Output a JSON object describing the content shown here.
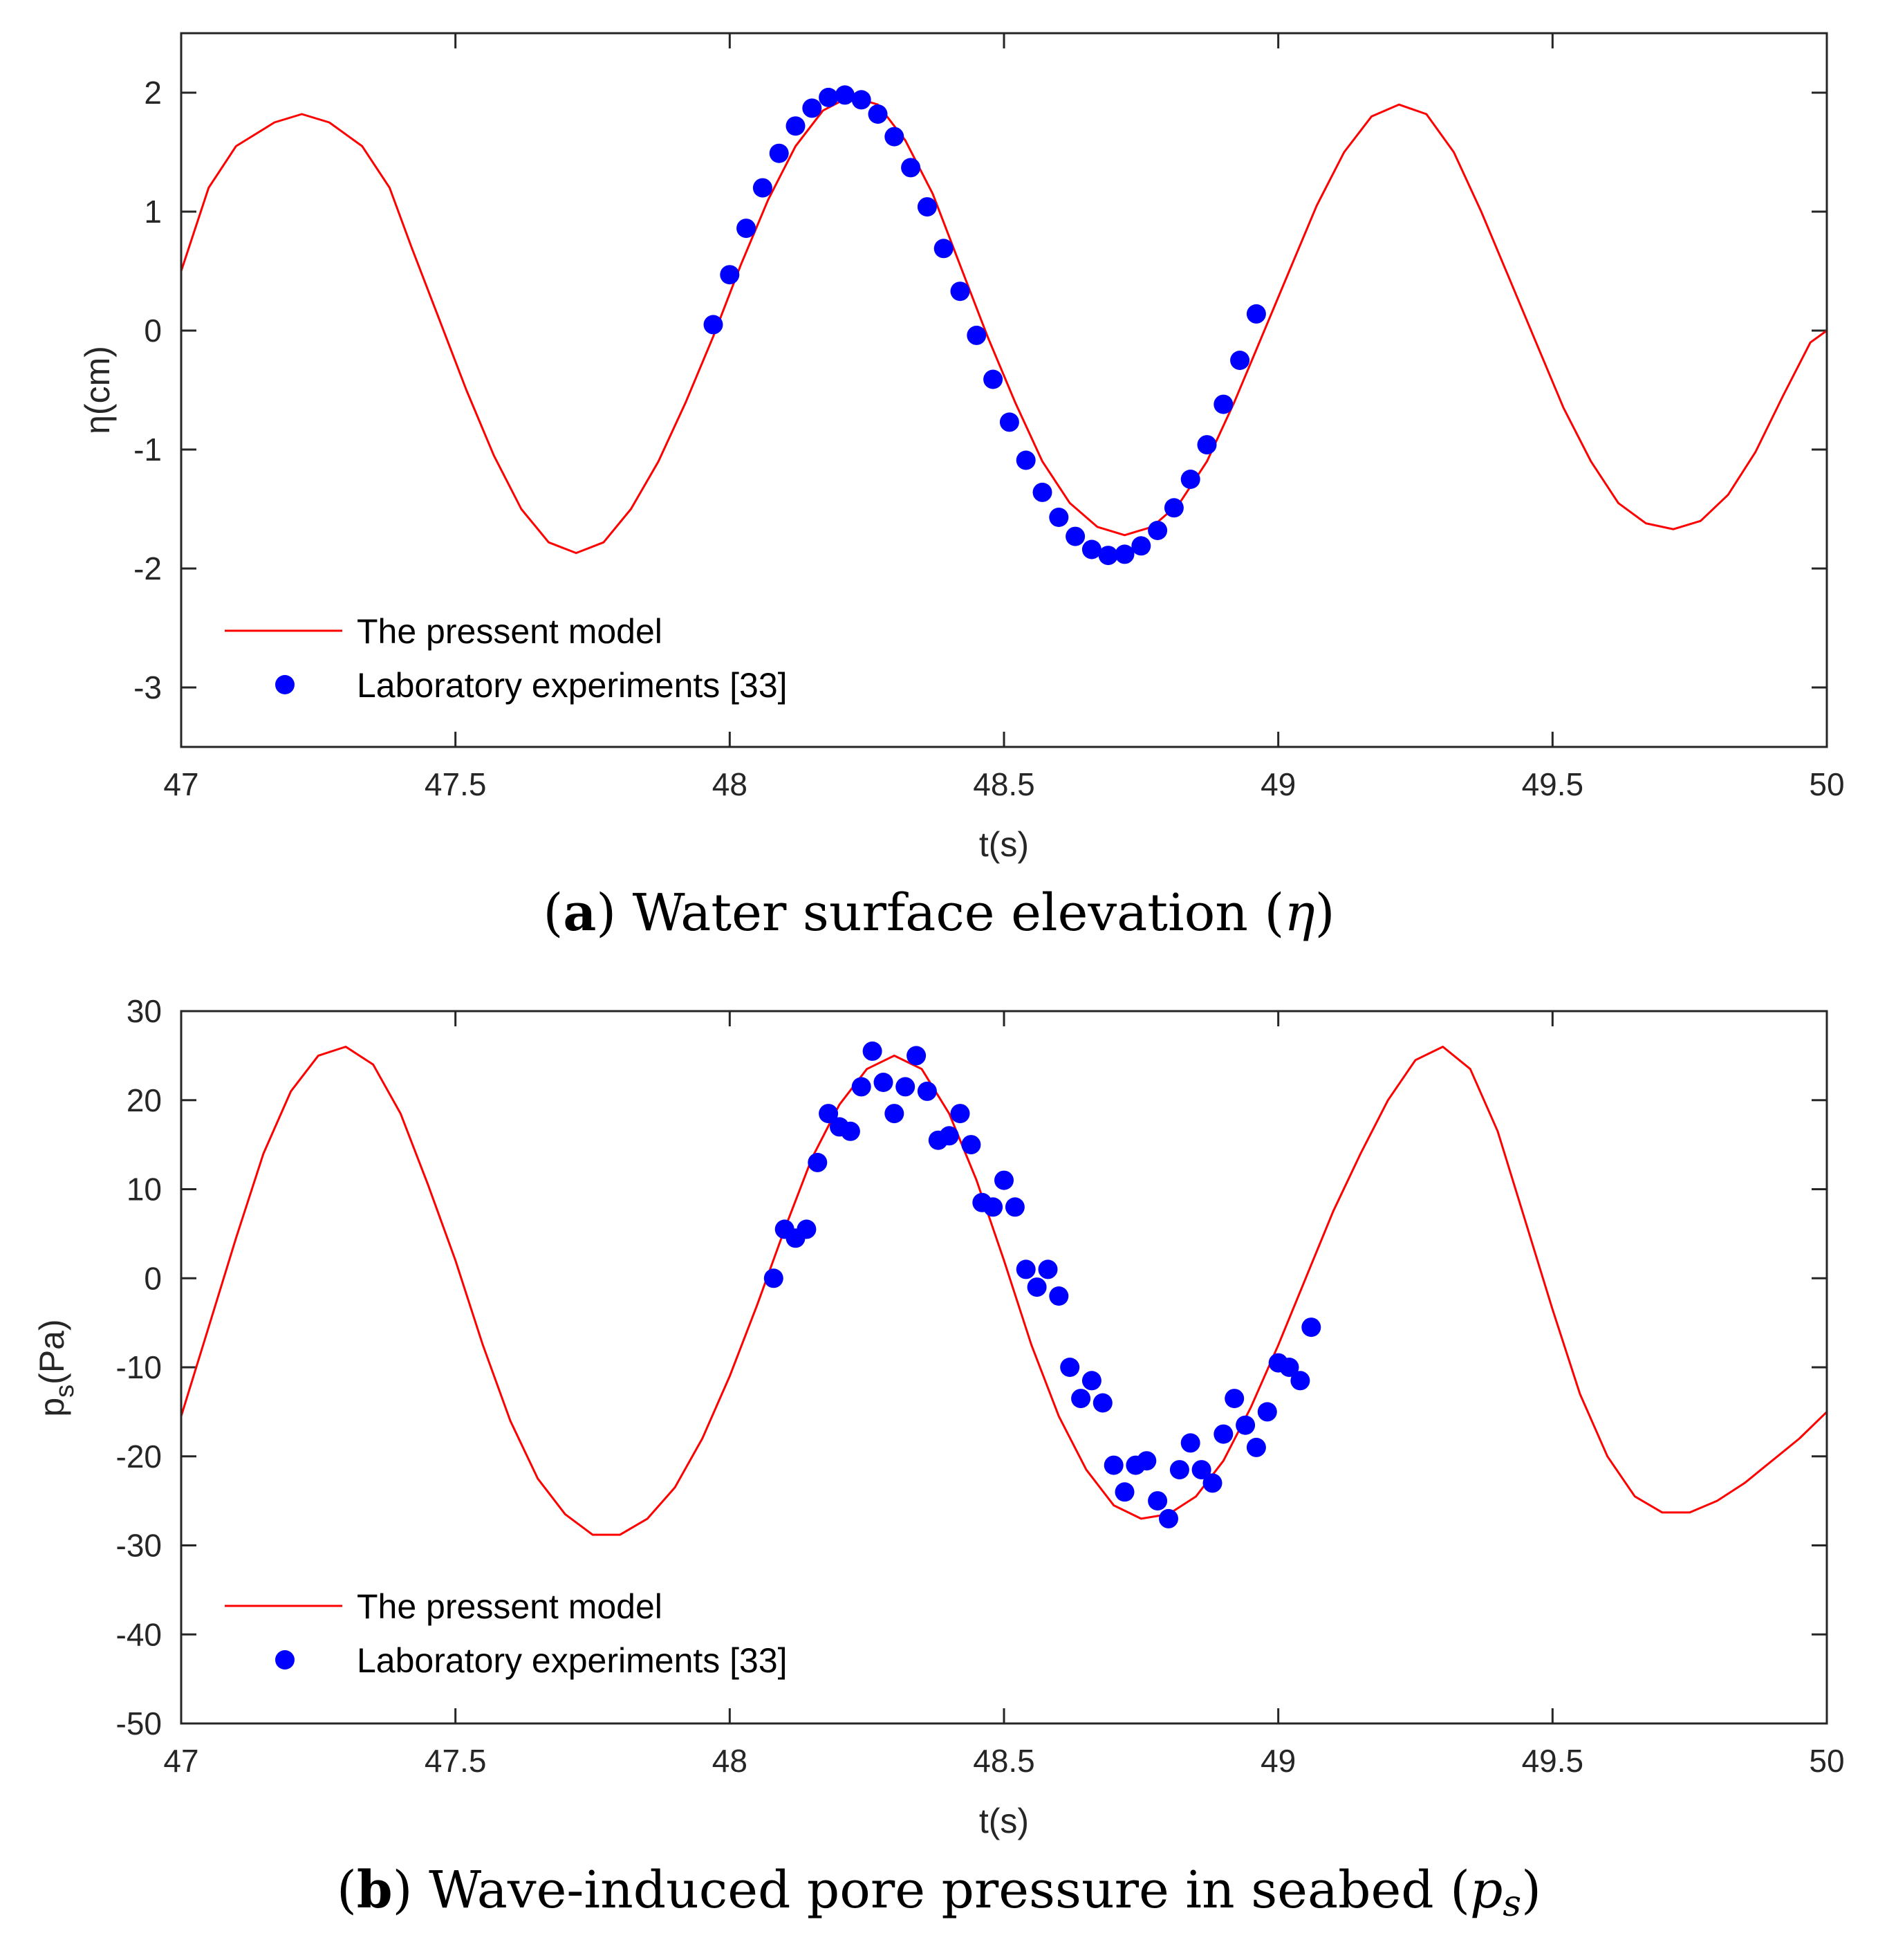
{
  "chart_data": [
    {
      "type": "line+scatter",
      "id": "a",
      "caption_letter": "a",
      "caption_text": " Water surface elevation (",
      "caption_symbol": "η",
      "caption_close": ")",
      "xlabel": "t(s)",
      "ylabel": "η(cm)",
      "xlim": [
        47,
        50
      ],
      "ylim": [
        -3.5,
        2.5
      ],
      "xticks": [
        47,
        47.5,
        48,
        48.5,
        49,
        49.5,
        50
      ],
      "xtick_labels": [
        "47",
        "47.5",
        "48",
        "48.5",
        "49",
        "49.5",
        "50"
      ],
      "yticks": [
        -3,
        -2,
        -1,
        0,
        1,
        2
      ],
      "ytick_labels": [
        "-3",
        "-2",
        "-1",
        "0",
        "1",
        "2"
      ],
      "legend": [
        "The pressent model",
        "Laboratory experiments [33]"
      ],
      "colors": {
        "model": "#ff0000",
        "experiments": "#0000ff"
      },
      "series": [
        {
          "name": "The pressent model",
          "style": "line",
          "x": [
            47.0,
            47.05,
            47.1,
            47.17,
            47.22,
            47.27,
            47.33,
            47.38,
            47.42,
            47.47,
            47.52,
            47.57,
            47.62,
            47.67,
            47.72,
            47.77,
            47.82,
            47.87,
            47.92,
            47.97,
            48.02,
            48.07,
            48.12,
            48.17,
            48.22,
            48.27,
            48.32,
            48.37,
            48.42,
            48.47,
            48.52,
            48.57,
            48.62,
            48.67,
            48.72,
            48.77,
            48.82,
            48.87,
            48.92,
            48.97,
            49.02,
            49.07,
            49.12,
            49.17,
            49.22,
            49.27,
            49.32,
            49.37,
            49.42,
            49.47,
            49.52,
            49.57,
            49.62,
            49.67,
            49.72,
            49.77,
            49.82,
            49.87,
            49.92,
            49.97,
            50.0
          ],
          "y": [
            0.5,
            1.2,
            1.55,
            1.75,
            1.82,
            1.75,
            1.55,
            1.2,
            0.7,
            0.1,
            -0.5,
            -1.05,
            -1.5,
            -1.78,
            -1.87,
            -1.78,
            -1.5,
            -1.1,
            -0.6,
            -0.05,
            0.55,
            1.1,
            1.55,
            1.85,
            1.97,
            1.9,
            1.6,
            1.15,
            0.55,
            -0.05,
            -0.6,
            -1.1,
            -1.45,
            -1.65,
            -1.72,
            -1.65,
            -1.45,
            -1.1,
            -0.6,
            -0.05,
            0.5,
            1.05,
            1.5,
            1.8,
            1.9,
            1.82,
            1.5,
            1.0,
            0.45,
            -0.1,
            -0.65,
            -1.1,
            -1.45,
            -1.62,
            -1.67,
            -1.6,
            -1.38,
            -1.02,
            -0.55,
            -0.1,
            0.0
          ]
        },
        {
          "name": "Laboratory experiments [33]",
          "style": "scatter",
          "x": [
            47.97,
            48.0,
            48.03,
            48.06,
            48.09,
            48.12,
            48.15,
            48.18,
            48.21,
            48.24,
            48.27,
            48.3,
            48.33,
            48.36,
            48.39,
            48.42,
            48.45,
            48.48,
            48.51,
            48.54,
            48.57,
            48.6,
            48.63,
            48.66,
            48.69,
            48.72,
            48.75,
            48.78,
            48.81,
            48.84,
            48.87,
            48.9,
            48.93,
            48.96
          ],
          "y": [
            0.05,
            0.47,
            0.86,
            1.2,
            1.49,
            1.72,
            1.87,
            1.96,
            1.98,
            1.94,
            1.82,
            1.63,
            1.37,
            1.04,
            0.69,
            0.33,
            -0.04,
            -0.41,
            -0.77,
            -1.09,
            -1.36,
            -1.57,
            -1.73,
            -1.84,
            -1.89,
            -1.88,
            -1.81,
            -1.68,
            -1.49,
            -1.25,
            -0.96,
            -0.62,
            -0.25,
            0.14
          ]
        }
      ]
    },
    {
      "type": "line+scatter",
      "id": "b",
      "caption_letter": "b",
      "caption_text": " Wave-induced pore pressure in seabed (",
      "caption_symbol": "p",
      "caption_subscript": "s",
      "caption_close": ")",
      "xlabel": "t(s)",
      "ylabel_main": "p",
      "ylabel_sub": "s",
      "ylabel_unit": "(Pa)",
      "xlim": [
        47,
        50
      ],
      "ylim": [
        -50,
        30
      ],
      "xticks": [
        47,
        47.5,
        48,
        48.5,
        49,
        49.5,
        50
      ],
      "xtick_labels": [
        "47",
        "47.5",
        "48",
        "48.5",
        "49",
        "49.5",
        "50"
      ],
      "yticks": [
        -50,
        -40,
        -30,
        -20,
        -10,
        0,
        10,
        20,
        30
      ],
      "ytick_labels": [
        "-50",
        "-40",
        "-30",
        "-20",
        "-10",
        "0",
        "10",
        "20",
        "30"
      ],
      "legend": [
        "The pressent model",
        "Laboratory experiments [33]"
      ],
      "colors": {
        "model": "#ff0000",
        "experiments": "#0000ff"
      },
      "series": [
        {
          "name": "The pressent model",
          "style": "line",
          "x": [
            47.0,
            47.05,
            47.1,
            47.15,
            47.2,
            47.25,
            47.3,
            47.35,
            47.4,
            47.45,
            47.5,
            47.55,
            47.6,
            47.65,
            47.7,
            47.75,
            47.8,
            47.85,
            47.9,
            47.95,
            48.0,
            48.05,
            48.1,
            48.15,
            48.2,
            48.25,
            48.3,
            48.35,
            48.4,
            48.45,
            48.5,
            48.55,
            48.6,
            48.65,
            48.7,
            48.75,
            48.8,
            48.85,
            48.9,
            48.95,
            49.0,
            49.05,
            49.1,
            49.15,
            49.2,
            49.25,
            49.3,
            49.35,
            49.4,
            49.45,
            49.5,
            49.55,
            49.6,
            49.65,
            49.7,
            49.75,
            49.8,
            49.85,
            49.9,
            49.95,
            50.0
          ],
          "y": [
            -15.5,
            -5.5,
            4.5,
            14.0,
            21.0,
            25.0,
            26.0,
            24.0,
            18.5,
            10.5,
            2.0,
            -7.5,
            -16.0,
            -22.5,
            -26.5,
            -28.8,
            -28.8,
            -27.0,
            -23.5,
            -18.0,
            -11.0,
            -3.0,
            5.5,
            13.5,
            19.5,
            23.5,
            25.0,
            23.5,
            18.5,
            11.0,
            2.0,
            -7.5,
            -15.5,
            -21.5,
            -25.5,
            -27.0,
            -26.5,
            -24.5,
            -20.5,
            -14.5,
            -7.5,
            0.0,
            7.5,
            14.0,
            20.0,
            24.5,
            26.0,
            23.5,
            16.5,
            6.5,
            -3.5,
            -13.0,
            -20.0,
            -24.5,
            -26.3,
            -26.3,
            -25.0,
            -23.0,
            -20.5,
            -18.0,
            -15.0
          ]
        },
        {
          "name": "Laboratory experiments [33]",
          "style": "scatter",
          "x": [
            48.08,
            48.1,
            48.12,
            48.14,
            48.16,
            48.18,
            48.2,
            48.22,
            48.24,
            48.26,
            48.28,
            48.3,
            48.32,
            48.34,
            48.36,
            48.38,
            48.4,
            48.42,
            48.44,
            48.46,
            48.48,
            48.5,
            48.52,
            48.54,
            48.56,
            48.58,
            48.6,
            48.62,
            48.64,
            48.66,
            48.68,
            48.7,
            48.72,
            48.74,
            48.76,
            48.78,
            48.8,
            48.82,
            48.84,
            48.86,
            48.88,
            48.9,
            48.92,
            48.94,
            48.96,
            48.98,
            49.0,
            49.02,
            49.04,
            49.06
          ],
          "y": [
            0.0,
            5.5,
            4.5,
            5.5,
            13.0,
            18.5,
            17.0,
            16.5,
            21.5,
            25.5,
            22.0,
            18.5,
            21.5,
            25.0,
            21.0,
            15.5,
            16.0,
            18.5,
            15.0,
            8.5,
            8.0,
            11.0,
            8.0,
            1.0,
            -1.0,
            1.0,
            -2.0,
            -10.0,
            -13.5,
            -11.5,
            -14.0,
            -21.0,
            -24.0,
            -21.0,
            -20.5,
            -25.0,
            -27.0,
            -21.5,
            -18.5,
            -21.5,
            -23.0,
            -17.5,
            -13.5,
            -16.5,
            -19.0,
            -15.0,
            -9.5,
            -10.0,
            -11.5,
            -5.5
          ]
        }
      ]
    }
  ]
}
